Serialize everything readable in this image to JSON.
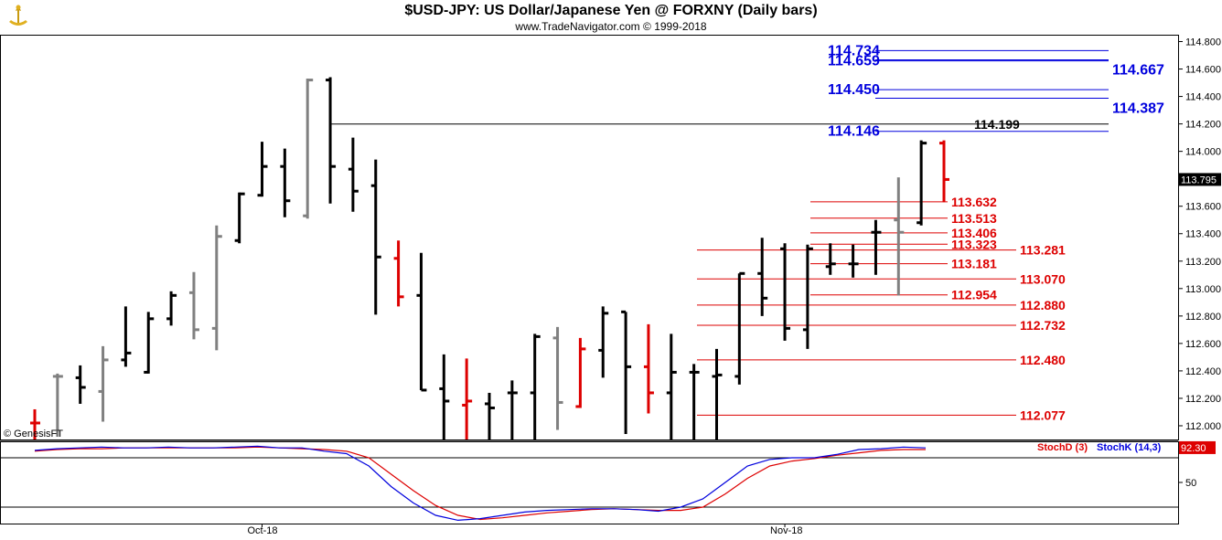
{
  "header": {
    "title": "$USD-JPY:  US Dollar/Japanese Yen @ FORXNY  (Daily bars)",
    "subtitle": "www.TradeNavigator.com © 1999-2018"
  },
  "copyright": "© GenesisFT",
  "chart_data": [
    {
      "type": "bar",
      "subtype": "ohlc",
      "ylim": [
        111.9,
        114.85
      ],
      "price_axis_ticks": [
        "112.000",
        "112.200",
        "112.400",
        "112.600",
        "112.800",
        "113.000",
        "113.200",
        "113.400",
        "113.600",
        "113.800",
        "114.000",
        "114.200",
        "114.400",
        "114.600",
        "114.800"
      ],
      "last_price_label": "113.795",
      "x_labels": [
        {
          "text": "Oct-18",
          "bar": 10
        },
        {
          "text": "Nov-18",
          "bar": 33
        }
      ],
      "colors": {
        "up": "#000000",
        "down": "#dd0000",
        "neutral": "#808080"
      },
      "bars": [
        {
          "o": 112.02,
          "h": 112.12,
          "l": 111.9,
          "c": 112.02,
          "color": "red"
        },
        {
          "o": 112.36,
          "h": 112.38,
          "l": 111.92,
          "c": 112.36,
          "color": "gray"
        },
        {
          "o": 112.35,
          "h": 112.44,
          "l": 112.16,
          "c": 112.28,
          "color": "black"
        },
        {
          "o": 112.25,
          "h": 112.58,
          "l": 112.03,
          "c": 112.48,
          "color": "gray"
        },
        {
          "o": 112.48,
          "h": 112.87,
          "l": 112.43,
          "c": 112.53,
          "color": "black"
        },
        {
          "o": 112.39,
          "h": 112.83,
          "l": 112.38,
          "c": 112.78,
          "color": "black"
        },
        {
          "o": 112.78,
          "h": 112.98,
          "l": 112.73,
          "c": 112.95,
          "color": "black"
        },
        {
          "o": 112.97,
          "h": 113.12,
          "l": 112.63,
          "c": 112.7,
          "color": "gray"
        },
        {
          "o": 112.71,
          "h": 113.46,
          "l": 112.55,
          "c": 113.38,
          "color": "gray"
        },
        {
          "o": 113.35,
          "h": 113.7,
          "l": 113.33,
          "c": 113.69,
          "color": "black"
        },
        {
          "o": 113.68,
          "h": 114.07,
          "l": 113.67,
          "c": 113.89,
          "color": "black"
        },
        {
          "o": 113.89,
          "h": 114.02,
          "l": 113.52,
          "c": 113.64,
          "color": "black"
        },
        {
          "o": 113.53,
          "h": 114.53,
          "l": 113.51,
          "c": 114.52,
          "color": "gray"
        },
        {
          "o": 114.52,
          "h": 114.54,
          "l": 113.62,
          "c": 113.89,
          "color": "black"
        },
        {
          "o": 113.87,
          "h": 114.1,
          "l": 113.56,
          "c": 113.71,
          "color": "black"
        },
        {
          "o": 113.75,
          "h": 113.94,
          "l": 112.81,
          "c": 113.23,
          "color": "black"
        },
        {
          "o": 113.22,
          "h": 113.35,
          "l": 112.87,
          "c": 112.94,
          "color": "red"
        },
        {
          "o": 112.95,
          "h": 113.26,
          "l": 112.26,
          "c": 112.26,
          "color": "black"
        },
        {
          "o": 112.27,
          "h": 112.52,
          "l": 111.9,
          "c": 112.18,
          "color": "black"
        },
        {
          "o": 112.15,
          "h": 112.49,
          "l": 111.9,
          "c": 112.18,
          "color": "red"
        },
        {
          "o": 112.16,
          "h": 112.24,
          "l": 111.9,
          "c": 112.13,
          "color": "black"
        },
        {
          "o": 112.24,
          "h": 112.33,
          "l": 111.9,
          "c": 112.24,
          "color": "black"
        },
        {
          "o": 112.24,
          "h": 112.67,
          "l": 111.9,
          "c": 112.65,
          "color": "black"
        },
        {
          "o": 112.64,
          "h": 112.72,
          "l": 111.97,
          "c": 112.17,
          "color": "gray"
        },
        {
          "o": 112.14,
          "h": 112.64,
          "l": 112.13,
          "c": 112.56,
          "color": "red"
        },
        {
          "o": 112.55,
          "h": 112.87,
          "l": 112.35,
          "c": 112.82,
          "color": "black"
        },
        {
          "o": 112.83,
          "h": 112.83,
          "l": 111.94,
          "c": 112.43,
          "color": "black"
        },
        {
          "o": 112.43,
          "h": 112.74,
          "l": 112.09,
          "c": 112.24,
          "color": "red"
        },
        {
          "o": 112.24,
          "h": 112.67,
          "l": 111.9,
          "c": 112.39,
          "color": "black"
        },
        {
          "o": 112.39,
          "h": 112.45,
          "l": 111.9,
          "c": 112.39,
          "color": "black"
        },
        {
          "o": 112.36,
          "h": 112.56,
          "l": 111.9,
          "c": 112.37,
          "color": "black"
        },
        {
          "o": 112.36,
          "h": 113.11,
          "l": 112.3,
          "c": 113.11,
          "color": "black"
        },
        {
          "o": 113.11,
          "h": 113.37,
          "l": 112.8,
          "c": 112.93,
          "color": "black"
        },
        {
          "o": 113.29,
          "h": 113.33,
          "l": 112.62,
          "c": 112.71,
          "color": "black"
        },
        {
          "o": 112.7,
          "h": 113.32,
          "l": 112.56,
          "c": 113.29,
          "color": "black"
        },
        {
          "o": 113.16,
          "h": 113.33,
          "l": 113.1,
          "c": 113.18,
          "color": "black"
        },
        {
          "o": 113.18,
          "h": 113.32,
          "l": 113.08,
          "c": 113.18,
          "color": "black"
        },
        {
          "o": 113.41,
          "h": 113.5,
          "l": 113.1,
          "c": 113.41,
          "color": "black"
        },
        {
          "o": 113.5,
          "h": 113.81,
          "l": 112.95,
          "c": 113.41,
          "color": "gray"
        },
        {
          "o": 113.48,
          "h": 114.08,
          "l": 113.46,
          "c": 114.06,
          "color": "black"
        },
        {
          "o": 114.06,
          "h": 114.08,
          "l": 113.63,
          "c": 113.795,
          "color": "red"
        }
      ],
      "resistance_lines": [
        {
          "value": 114.734,
          "label": "114.734",
          "side": "left",
          "color": "#0000dd",
          "x_from_bar": 36
        },
        {
          "value": 114.667,
          "label": "114.667",
          "side": "right",
          "color": "#0000dd",
          "x_from_bar": 36
        },
        {
          "value": 114.659,
          "label": "114.659",
          "side": "left",
          "color": "#0000dd",
          "x_from_bar": 36
        },
        {
          "value": 114.45,
          "label": "114.450",
          "side": "left",
          "color": "#0000dd",
          "x_from_bar": 36
        },
        {
          "value": 114.387,
          "label": "114.387",
          "side": "right",
          "color": "#0000dd",
          "x_from_bar": 36
        },
        {
          "value": 114.146,
          "label": "114.146",
          "side": "left",
          "color": "#0000dd",
          "x_from_bar": 36
        },
        {
          "value": 114.199,
          "label": "114.199",
          "side": "right",
          "color": "#000000",
          "x_from_bar": 13
        }
      ],
      "support_lines": [
        {
          "value": 113.632,
          "label": "113.632",
          "color": "#dd0000",
          "x_from_bar": 35,
          "x_to_bar": 40
        },
        {
          "value": 113.513,
          "label": "113.513",
          "color": "#dd0000",
          "x_from_bar": 35,
          "x_to_bar": 40
        },
        {
          "value": 113.406,
          "label": "113.406",
          "color": "#dd0000",
          "x_from_bar": 35,
          "x_to_bar": 40
        },
        {
          "value": 113.323,
          "label": "113.323",
          "color": "#dd0000",
          "x_from_bar": 35,
          "x_to_bar": 40
        },
        {
          "value": 113.281,
          "label": "113.281",
          "color": "#dd0000",
          "x_from_bar": 30,
          "x_to_bar": 43
        },
        {
          "value": 113.181,
          "label": "113.181",
          "color": "#dd0000",
          "x_from_bar": 35,
          "x_to_bar": 40
        },
        {
          "value": 113.07,
          "label": "113.070",
          "color": "#dd0000",
          "x_from_bar": 30,
          "x_to_bar": 43
        },
        {
          "value": 112.954,
          "label": "112.954",
          "color": "#dd0000",
          "x_from_bar": 35,
          "x_to_bar": 40
        },
        {
          "value": 112.88,
          "label": "112.880",
          "color": "#dd0000",
          "x_from_bar": 30,
          "x_to_bar": 43
        },
        {
          "value": 112.732,
          "label": "112.732",
          "color": "#dd0000",
          "x_from_bar": 30,
          "x_to_bar": 43
        },
        {
          "value": 112.48,
          "label": "112.480",
          "color": "#dd0000",
          "x_from_bar": 30,
          "x_to_bar": 43
        },
        {
          "value": 112.077,
          "label": "112.077",
          "color": "#dd0000",
          "x_from_bar": 30,
          "x_to_bar": 43
        }
      ]
    },
    {
      "type": "line",
      "ylim": [
        0,
        100
      ],
      "axis_ticks": [
        "50"
      ],
      "reference_lines": [
        80,
        20
      ],
      "last_value_label": "92.30",
      "series": [
        {
          "name": "StochD (3)",
          "color": "#dd0000",
          "values": [
            88,
            90,
            91,
            91,
            92,
            92,
            92,
            92,
            92,
            92,
            93,
            92,
            91,
            90,
            88,
            80,
            60,
            40,
            22,
            10,
            5,
            7,
            10,
            13,
            15,
            17,
            18,
            17,
            16,
            16,
            20,
            36,
            55,
            70,
            76,
            79,
            83,
            86,
            89,
            90,
            90
          ]
        },
        {
          "name": "StochK (14,3)",
          "color": "#0000dd",
          "values": [
            89,
            91,
            92,
            93,
            92,
            92,
            93,
            92,
            92,
            93,
            94,
            92,
            92,
            88,
            85,
            70,
            45,
            25,
            10,
            4,
            6,
            10,
            14,
            16,
            17,
            18,
            18,
            17,
            15,
            20,
            30,
            50,
            70,
            78,
            80,
            80,
            84,
            90,
            91,
            93,
            92
          ]
        }
      ]
    }
  ]
}
